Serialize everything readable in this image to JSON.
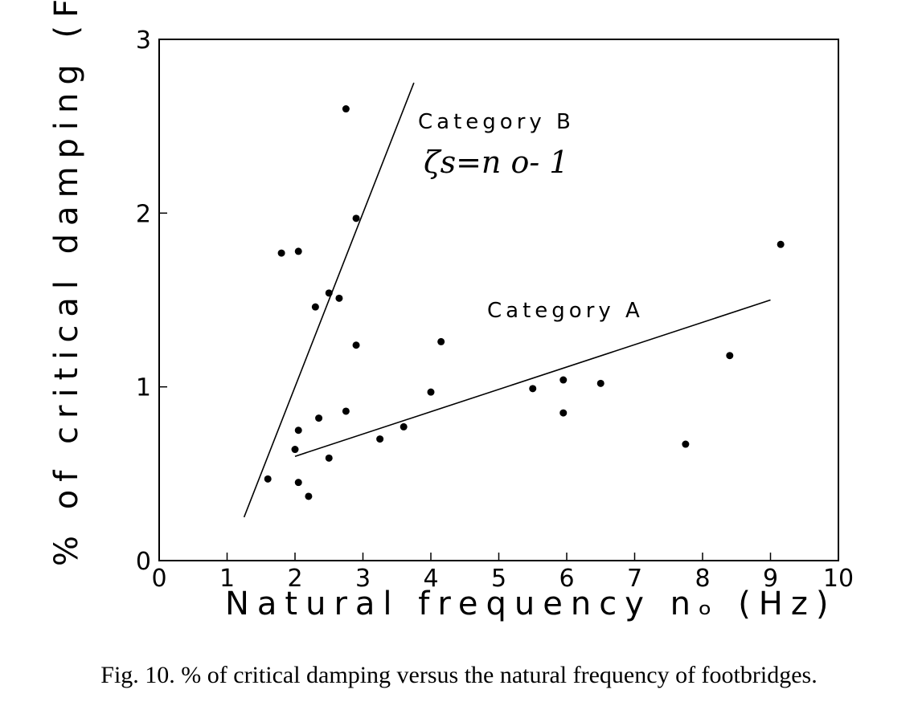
{
  "caption": "Fig. 10.  % of critical damping versus the natural frequency of footbridges.",
  "chart_data": {
    "type": "scatter",
    "xlabel": "Natural frequency nₒ  (Hz)",
    "ylabel": "% of critical damping  (FVD)",
    "xlim": [
      0,
      10
    ],
    "ylim": [
      0,
      3
    ],
    "xticks": [
      0,
      1,
      2,
      3,
      4,
      5,
      6,
      7,
      8,
      9,
      10
    ],
    "yticks": [
      0,
      1,
      2,
      3
    ],
    "grid": false,
    "points": [
      {
        "x": 1.6,
        "y": 0.47
      },
      {
        "x": 1.8,
        "y": 1.77
      },
      {
        "x": 2.0,
        "y": 0.64
      },
      {
        "x": 2.05,
        "y": 1.78
      },
      {
        "x": 2.05,
        "y": 0.75
      },
      {
        "x": 2.05,
        "y": 0.45
      },
      {
        "x": 2.2,
        "y": 0.37
      },
      {
        "x": 2.3,
        "y": 1.46
      },
      {
        "x": 2.35,
        "y": 0.82
      },
      {
        "x": 2.5,
        "y": 1.54
      },
      {
        "x": 2.5,
        "y": 0.59
      },
      {
        "x": 2.65,
        "y": 1.51
      },
      {
        "x": 2.75,
        "y": 2.6
      },
      {
        "x": 2.75,
        "y": 0.86
      },
      {
        "x": 2.9,
        "y": 1.97
      },
      {
        "x": 2.9,
        "y": 1.24
      },
      {
        "x": 3.25,
        "y": 0.7
      },
      {
        "x": 3.6,
        "y": 0.77
      },
      {
        "x": 4.0,
        "y": 0.97
      },
      {
        "x": 4.15,
        "y": 1.26
      },
      {
        "x": 5.5,
        "y": 0.99
      },
      {
        "x": 5.95,
        "y": 1.04
      },
      {
        "x": 5.95,
        "y": 0.85
      },
      {
        "x": 6.5,
        "y": 1.02
      },
      {
        "x": 7.75,
        "y": 0.67
      },
      {
        "x": 8.4,
        "y": 1.18
      },
      {
        "x": 9.15,
        "y": 1.82
      }
    ],
    "lines": [
      {
        "name": "Category B",
        "x": [
          1.25,
          3.75
        ],
        "y": [
          0.25,
          2.75
        ]
      },
      {
        "name": "Category A",
        "x": [
          2.0,
          9.0
        ],
        "y": [
          0.6,
          1.5
        ]
      }
    ],
    "annotations": {
      "category_b": "Category B",
      "formula": "ζs=n o- 1",
      "category_a": "Category A"
    }
  }
}
